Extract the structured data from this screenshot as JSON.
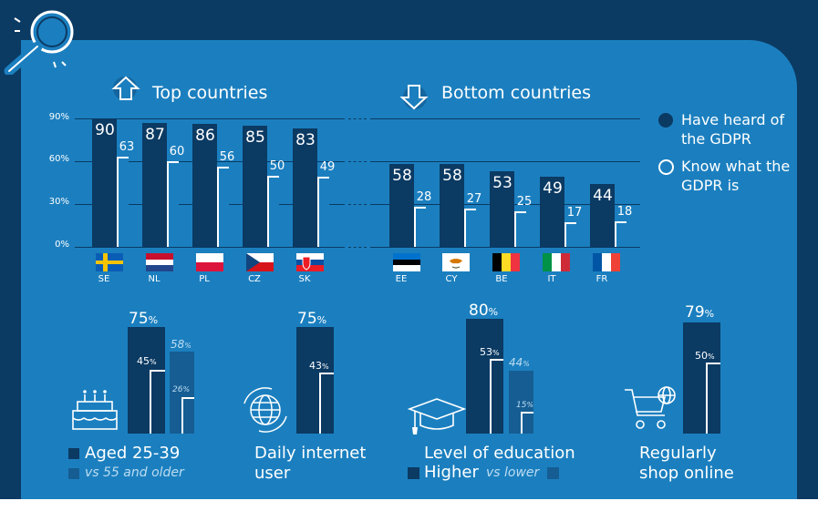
{
  "colors": {
    "dark_navy": "#0b3a63",
    "panel_blue": "#1b7fbf",
    "mid_blue": "#155d93",
    "white": "#ffffff"
  },
  "icons": [
    "magnifier-icon",
    "arrow-up-icon",
    "arrow-down-icon",
    "cake-icon",
    "globe-icon",
    "graduation-cap-icon",
    "shopping-cart-icon"
  ],
  "legend": {
    "heard": "Have heard of the GDPR",
    "know": "Know what the GDPR is"
  },
  "chart_data": [
    {
      "type": "bar",
      "title": "Top countries",
      "y_ticks": [
        "90%",
        "60%",
        "30%",
        "0%"
      ],
      "ylim": [
        0,
        90
      ],
      "grid": true,
      "categories": [
        "SE",
        "NL",
        "PL",
        "CZ",
        "SK"
      ],
      "series": [
        {
          "name": "Have heard of the GDPR",
          "values": [
            90,
            87,
            86,
            85,
            83
          ]
        },
        {
          "name": "Know what the GDPR is",
          "values": [
            63,
            60,
            56,
            50,
            49
          ]
        }
      ]
    },
    {
      "type": "bar",
      "title": "Bottom countries",
      "ylim": [
        0,
        90
      ],
      "grid": true,
      "categories": [
        "EE",
        "CY",
        "BE",
        "IT",
        "FR"
      ],
      "series": [
        {
          "name": "Have heard of the GDPR",
          "values": [
            58,
            58,
            53,
            49,
            44
          ]
        },
        {
          "name": "Know what the GDPR is",
          "values": [
            28,
            27,
            25,
            17,
            18
          ]
        }
      ]
    },
    {
      "type": "bar",
      "title": "",
      "groups": [
        {
          "label": "Aged 25-39",
          "sublabel": "vs 55 and older",
          "heard": 75,
          "know": 45,
          "heard_cmp": 58,
          "know_cmp": 26
        },
        {
          "label": "Daily internet user",
          "heard": 75,
          "know": 43
        },
        {
          "label": "Level of education",
          "sub_higher": "Higher",
          "sub_vs": "vs lower",
          "heard": 80,
          "know": 53,
          "heard_cmp": 44,
          "know_cmp": 15
        },
        {
          "label": "Regularly shop online",
          "heard": 79,
          "know": 50
        }
      ]
    }
  ]
}
